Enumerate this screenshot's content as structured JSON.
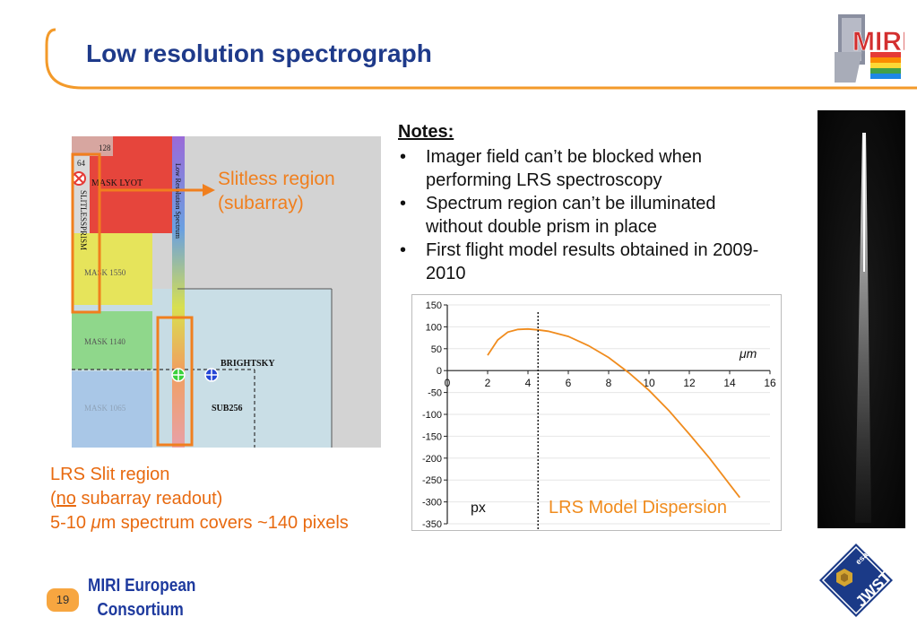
{
  "slide": {
    "title": "Low resolution spectrograph",
    "page_number": "19",
    "footer": {
      "line1": "MIRI European",
      "line2": "Consortium"
    }
  },
  "logos": {
    "miri_text": "MIRI",
    "jwst_text": "JWST",
    "esa_text": "esa"
  },
  "focal_plane": {
    "labels": {
      "n128": "128",
      "n64": "64",
      "mask_lyot": "MASK LYOT",
      "slitless_prism": "SLITLESSPRISM",
      "mask_550": "MASK 1550",
      "mask_140": "MASK 1140",
      "mask_065": "MASK 1065",
      "brightsky": "BRIGHTSKY",
      "sub256": "SUB256",
      "lrs_spectrum": "Low Resolution Spectrum"
    },
    "colors": {
      "mask_lyot": "#e8453c",
      "mask_550": "#e7e65a",
      "mask_140": "#8fd68a",
      "mask_065": "#a6c5e6",
      "brightsky": "#c6dde6",
      "highlight": "#f07f1e"
    }
  },
  "annotations": {
    "slitless_line1": "Slitless region",
    "slitless_line2": "(subarray)",
    "slit_line1": "LRS Slit region",
    "slit_line2_prefix": "(",
    "slit_line2_underlined": "no",
    "slit_line2_suffix": " subarray readout)",
    "slit_line3_pre": "5-10 ",
    "slit_line3_unit": "μ",
    "slit_line3_post": "m spectrum covers ~140 pixels"
  },
  "notes": {
    "title": "Notes:",
    "bullet": "•",
    "items": [
      "Imager field can’t be blocked when performing LRS spectroscopy",
      "Spectrum region can’t be illuminated without double prism in place",
      "First flight model results obtained in 2009-2010"
    ]
  },
  "chart_data": {
    "type": "line",
    "annotation": "LRS Model Dispersion",
    "xlabel": "μm",
    "ylabel": "px",
    "xlim": [
      0,
      16
    ],
    "ylim": [
      -350,
      150
    ],
    "xticks": [
      0,
      2,
      4,
      6,
      8,
      10,
      12,
      14,
      16
    ],
    "yticks": [
      150,
      100,
      50,
      0,
      -50,
      -100,
      -150,
      -200,
      -250,
      -300,
      -350
    ],
    "grid": true,
    "vertical_marker_x": 4.5,
    "line_color": "#f08c1e",
    "series": [
      {
        "x": [
          2,
          2.5,
          3,
          3.5,
          4,
          4.5,
          5,
          6,
          7,
          8,
          9,
          10,
          11,
          12,
          13,
          14,
          14.5
        ],
        "values": [
          35,
          70,
          88,
          94,
          95,
          93,
          90,
          78,
          57,
          30,
          -5,
          -45,
          -92,
          -145,
          -200,
          -260,
          -290
        ]
      }
    ]
  }
}
